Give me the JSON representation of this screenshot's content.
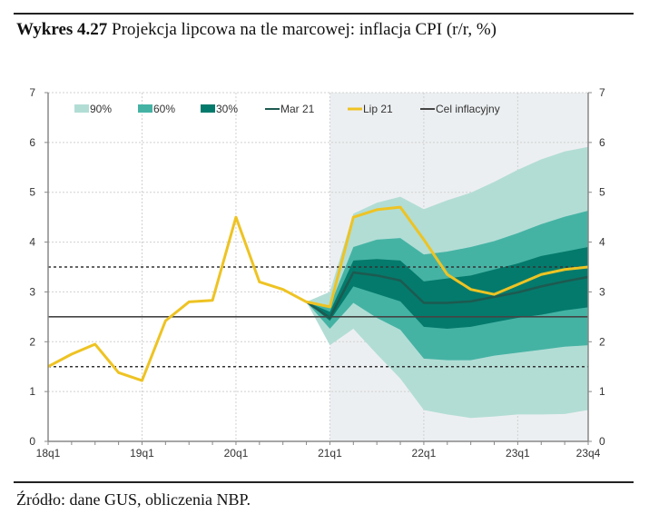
{
  "header": {
    "label": "Wykres 4.27",
    "title": "Projekcja lipcowa na tle marcowej: inflacja CPI (r/r, %)"
  },
  "source": "Źródło: dane GUS, obliczenia NBP.",
  "chart_data": {
    "type": "area",
    "title": "Projekcja lipcowa na tle marcowej: inflacja CPI (r/r, %)",
    "ylim": [
      0,
      7
    ],
    "yticks": [
      0,
      1,
      2,
      3,
      4,
      5,
      6,
      7
    ],
    "x_categories": [
      "18q1",
      "18q2",
      "18q3",
      "18q4",
      "19q1",
      "19q2",
      "19q3",
      "19q4",
      "20q1",
      "20q2",
      "20q3",
      "20q4",
      "21q1",
      "21q2",
      "21q3",
      "21q4",
      "22q1",
      "22q2",
      "22q3",
      "22q4",
      "23q1",
      "23q2",
      "23q3",
      "23q4"
    ],
    "xtick_labels": [
      "18q1",
      "19q1",
      "20q1",
      "21q1",
      "22q1",
      "23q1",
      "23q4"
    ],
    "projection_start": "21q1",
    "grid": true,
    "legend_position": "top",
    "legend": [
      "90%",
      "60%",
      "30%",
      "Mar 21",
      "Lip 21",
      "Cel inflacyjny"
    ],
    "colors": {
      "90%": "#b2ddd5",
      "60%": "#45b3a4",
      "30%": "#047a6c",
      "Mar 21": "#1d5a50",
      "Lip 21": "#eec323",
      "Cel inflacyjny": "#444444",
      "forecast_bg": "#eceff1"
    },
    "fan_x": [
      "20q4",
      "21q1",
      "21q2",
      "21q3",
      "21q4",
      "22q1",
      "22q2",
      "22q3",
      "22q4",
      "23q1",
      "23q2",
      "23q3",
      "23q4"
    ],
    "bands": {
      "90%": {
        "upper": [
          2.8,
          3.0,
          4.57,
          4.79,
          4.91,
          4.66,
          4.84,
          4.99,
          5.21,
          5.45,
          5.66,
          5.82,
          5.91
        ],
        "lower": [
          2.8,
          1.93,
          2.26,
          1.75,
          1.26,
          0.63,
          0.54,
          0.47,
          0.5,
          0.54,
          0.54,
          0.55,
          0.63
        ]
      },
      "60%": {
        "upper": [
          2.8,
          2.72,
          3.9,
          4.05,
          4.08,
          3.75,
          3.81,
          3.9,
          4.02,
          4.18,
          4.36,
          4.51,
          4.63
        ],
        "lower": [
          2.8,
          2.26,
          2.78,
          2.48,
          2.24,
          1.66,
          1.63,
          1.63,
          1.72,
          1.78,
          1.84,
          1.9,
          1.93
        ]
      },
      "30%": {
        "upper": [
          2.8,
          2.6,
          3.63,
          3.66,
          3.63,
          3.21,
          3.27,
          3.33,
          3.45,
          3.57,
          3.72,
          3.81,
          3.9
        ],
        "lower": [
          2.8,
          2.42,
          3.11,
          2.96,
          2.81,
          2.3,
          2.26,
          2.3,
          2.39,
          2.48,
          2.54,
          2.63,
          2.69
        ]
      }
    },
    "series": [
      {
        "name": "Mar 21",
        "x": [
          "20q4",
          "21q1",
          "21q2",
          "21q3",
          "21q4",
          "22q1",
          "22q2",
          "22q3",
          "22q4",
          "23q1",
          "23q2",
          "23q3",
          "23q4"
        ],
        "values": [
          2.8,
          2.48,
          3.39,
          3.33,
          3.23,
          2.78,
          2.78,
          2.81,
          2.9,
          2.99,
          3.11,
          3.21,
          3.3
        ]
      },
      {
        "name": "Lip 21",
        "x": [
          "18q1",
          "18q2",
          "18q3",
          "18q4",
          "19q1",
          "19q2",
          "19q3",
          "19q4",
          "20q1",
          "20q2",
          "20q3",
          "20q4",
          "21q1",
          "21q2",
          "21q3",
          "21q4",
          "22q1",
          "22q2",
          "22q3",
          "22q4",
          "23q1",
          "23q2",
          "23q3",
          "23q4"
        ],
        "values": [
          1.5,
          1.75,
          1.95,
          1.38,
          1.22,
          2.42,
          2.8,
          2.83,
          4.5,
          3.2,
          3.05,
          2.8,
          2.7,
          4.5,
          4.65,
          4.7,
          4.05,
          3.35,
          3.05,
          2.95,
          3.15,
          3.35,
          3.45,
          3.5
        ]
      }
    ],
    "reference_lines": [
      {
        "name": "Cel inflacyjny",
        "value": 2.5,
        "style": "solid"
      },
      {
        "value": 1.5,
        "style": "dotted"
      },
      {
        "value": 3.5,
        "style": "dotted"
      }
    ]
  }
}
